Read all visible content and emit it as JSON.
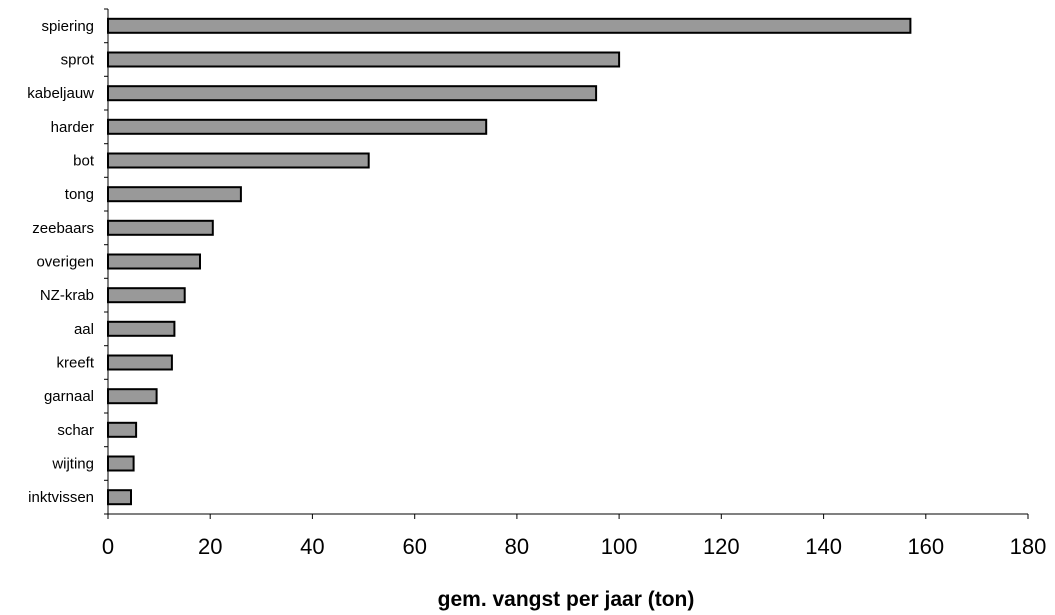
{
  "chart_data": {
    "type": "bar",
    "orientation": "horizontal",
    "categories": [
      "spiering",
      "sprot",
      "kabeljauw",
      "harder",
      "bot",
      "tong",
      "zeebaars",
      "overigen",
      "NZ-krab",
      "aal",
      "kreeft",
      "garnaal",
      "schar",
      "wijting",
      "inktvissen"
    ],
    "values": [
      157,
      100,
      95.5,
      74,
      51,
      26,
      20.5,
      18,
      15,
      13,
      12.5,
      9.5,
      5.5,
      5,
      4.5
    ],
    "xlabel": "gem. vangst per jaar (ton)",
    "ylabel": "",
    "title": "",
    "xlim": [
      0,
      180
    ],
    "xticks": [
      0,
      20,
      40,
      60,
      80,
      100,
      120,
      140,
      160,
      180
    ],
    "grid": false,
    "legend": "none",
    "colors": {
      "bar_fill": "#999999",
      "bar_stroke": "#000000",
      "axis": "#000000"
    }
  }
}
